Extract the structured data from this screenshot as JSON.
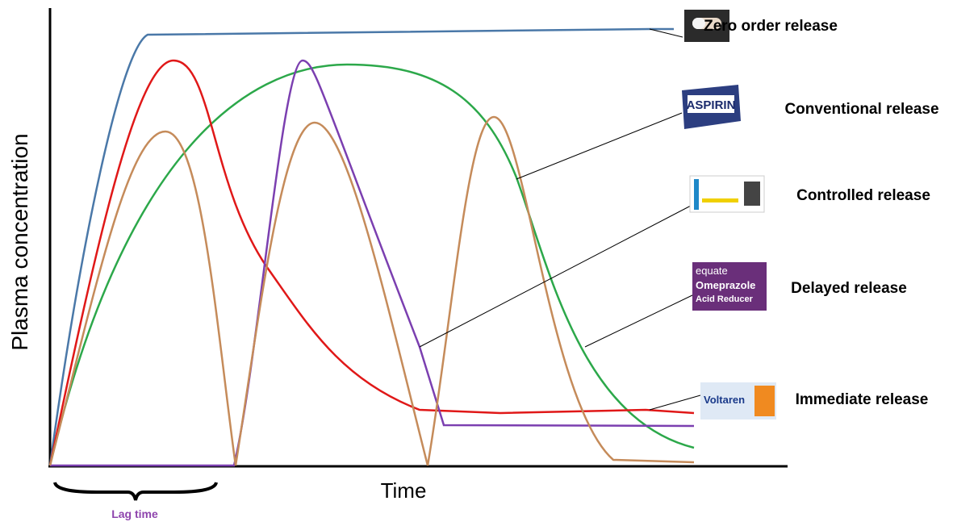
{
  "axes": {
    "y_label": "Plasma concentration",
    "x_label": "Time",
    "lag_label": "Lag time"
  },
  "legend": [
    {
      "label": "Zero order release"
    },
    {
      "label": "Conventional release",
      "product": "ASPIRIN"
    },
    {
      "label": "Controlled release"
    },
    {
      "label": "Delayed release",
      "product": "Omeprazole",
      "brand": "equate",
      "subtitle": "Acid Reducer"
    },
    {
      "label": "Immediate release",
      "product": "Voltaren"
    }
  ]
}
